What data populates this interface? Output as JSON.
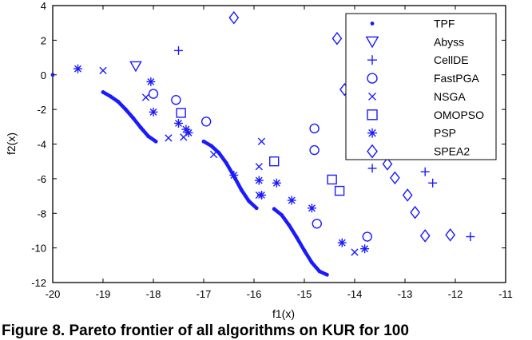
{
  "chart_data": {
    "type": "scatter",
    "xlabel": "f1(x)",
    "ylabel": "f2(x)",
    "xlim": [
      -20,
      -11
    ],
    "ylim": [
      -12,
      4
    ],
    "xticks": [
      "-20",
      "-19",
      "-18",
      "-17",
      "-16",
      "-15",
      "-14",
      "-13",
      "-12",
      "-11"
    ],
    "yticks": [
      "4",
      "2",
      "0",
      "-2",
      "-4",
      "-6",
      "-8",
      "-10",
      "-12"
    ],
    "grid": false,
    "legend": "top-right",
    "colors": {
      "series": "#1a1aff",
      "axis": "#000000"
    },
    "series": [
      {
        "name": "TPF",
        "marker": "dot",
        "x": [
          -20.0,
          -19.0,
          -18.85,
          -18.7,
          -18.55,
          -18.4,
          -18.25,
          -18.1,
          -17.95,
          -17.0,
          -16.85,
          -16.7,
          -16.55,
          -16.4,
          -16.25,
          -16.1,
          -15.95,
          -15.6,
          -15.45,
          -15.3,
          -15.15,
          -15.0,
          -14.85,
          -14.7,
          -14.55
        ],
        "y": [
          0.0,
          -1.0,
          -1.25,
          -1.55,
          -2.0,
          -2.5,
          -3.05,
          -3.55,
          -3.85,
          -3.85,
          -4.1,
          -4.5,
          -5.1,
          -5.85,
          -6.65,
          -7.3,
          -7.7,
          -7.75,
          -8.1,
          -8.7,
          -9.4,
          -10.15,
          -10.85,
          -11.35,
          -11.55
        ]
      },
      {
        "name": "Abyss",
        "marker": "triangle-down",
        "x": [
          -18.35
        ],
        "y": [
          0.5
        ]
      },
      {
        "name": "CellDE",
        "marker": "plus",
        "x": [
          -17.5,
          -13.65,
          -12.6,
          -12.45,
          -11.7
        ],
        "y": [
          1.4,
          -5.4,
          -5.6,
          -6.25,
          -9.35
        ]
      },
      {
        "name": "FastPGA",
        "marker": "circle",
        "x": [
          -18.0,
          -17.55,
          -16.95,
          -14.8,
          -14.8,
          -14.75,
          -13.75
        ],
        "y": [
          -1.1,
          -1.45,
          -2.7,
          -3.1,
          -4.35,
          -8.6,
          -9.35
        ]
      },
      {
        "name": "NSGA",
        "marker": "x",
        "x": [
          -19.0,
          -18.15,
          -17.7,
          -17.4,
          -16.8,
          -15.85,
          -15.9,
          -15.9,
          -14.0
        ],
        "y": [
          0.25,
          -1.3,
          -3.65,
          -3.6,
          -4.6,
          -3.85,
          -5.3,
          -6.95,
          -10.25
        ]
      },
      {
        "name": "OMOPSO",
        "marker": "square",
        "x": [
          -17.45,
          -15.6,
          -14.45,
          -14.3
        ],
        "y": [
          -2.2,
          -5.0,
          -6.05,
          -6.7
        ]
      },
      {
        "name": "PSP",
        "marker": "asterisk",
        "x": [
          -19.5,
          -18.05,
          -18.0,
          -17.5,
          -17.35,
          -17.3,
          -16.4,
          -15.9,
          -15.85,
          -15.55,
          -15.25,
          -14.85,
          -14.25,
          -13.8
        ],
        "y": [
          0.35,
          -0.4,
          -2.15,
          -2.8,
          -3.15,
          -3.35,
          -5.8,
          -6.1,
          -6.95,
          -6.25,
          -7.25,
          -7.7,
          -9.7,
          -10.05
        ]
      },
      {
        "name": "SPEA2",
        "marker": "diamond",
        "x": [
          -16.4,
          -14.35,
          -14.2,
          -13.35,
          -13.2,
          -12.95,
          -12.8,
          -12.6,
          -12.1
        ],
        "y": [
          3.3,
          2.1,
          -0.85,
          -5.15,
          -5.95,
          -6.95,
          -7.95,
          -9.3,
          -9.25
        ]
      }
    ]
  },
  "caption": "Figure 8. Pareto frontier of all algorithms on KUR for 100"
}
